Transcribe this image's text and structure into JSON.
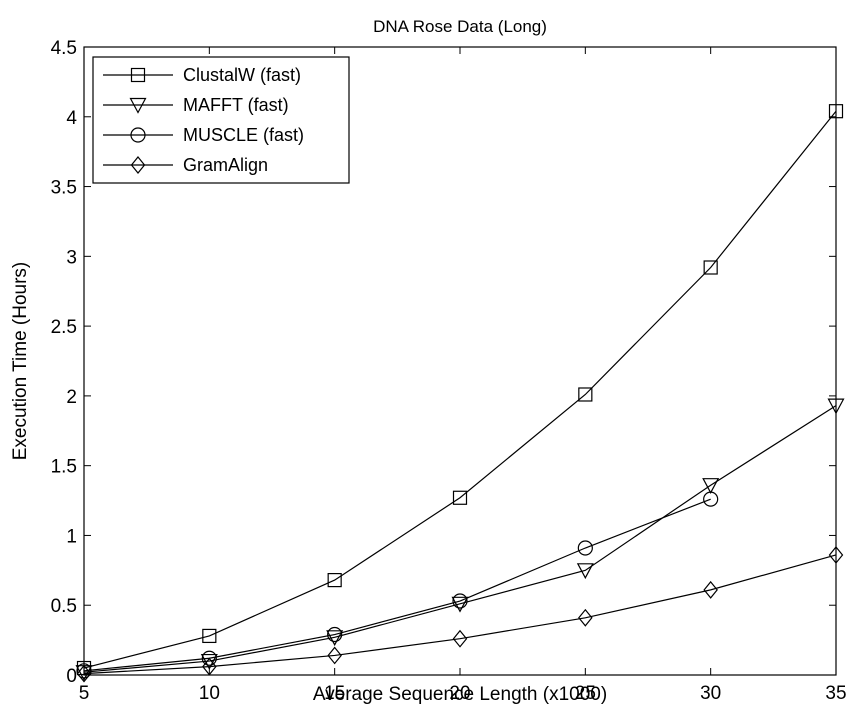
{
  "chart_data": {
    "type": "line",
    "title": "DNA Rose Data (Long)",
    "xlabel": "Average Sequence Length (x1000)",
    "ylabel": "Execution Time (Hours)",
    "xlim": [
      5,
      35
    ],
    "ylim": [
      0,
      4.5
    ],
    "x": [
      5,
      10,
      15,
      20,
      25,
      30,
      35
    ],
    "xticks": [
      "5",
      "10",
      "15",
      "20",
      "25",
      "30",
      "35"
    ],
    "yticks": [
      "0",
      "0.5",
      "1",
      "1.5",
      "2",
      "2.5",
      "3",
      "3.5",
      "4",
      "4.5"
    ],
    "grid": false,
    "legend_position": "top-left",
    "series": [
      {
        "name": "ClustalW (fast)",
        "marker": "square",
        "x": [
          5,
          10,
          15,
          20,
          25,
          30,
          35
        ],
        "values": [
          0.05,
          0.28,
          0.68,
          1.27,
          2.01,
          2.92,
          4.04
        ]
      },
      {
        "name": "MAFFT (fast)",
        "marker": "triangle-down",
        "x": [
          5,
          10,
          15,
          20,
          25,
          30,
          35
        ],
        "values": [
          0.02,
          0.1,
          0.27,
          0.51,
          0.75,
          1.36,
          1.93
        ]
      },
      {
        "name": "MUSCLE (fast)",
        "marker": "circle",
        "x": [
          5,
          10,
          15,
          20,
          25,
          30
        ],
        "values": [
          0.03,
          0.12,
          0.29,
          0.53,
          0.91,
          1.26
        ]
      },
      {
        "name": "GramAlign",
        "marker": "diamond",
        "x": [
          5,
          10,
          15,
          20,
          25,
          30,
          35
        ],
        "values": [
          0.01,
          0.06,
          0.14,
          0.26,
          0.41,
          0.61,
          0.86
        ]
      }
    ]
  }
}
